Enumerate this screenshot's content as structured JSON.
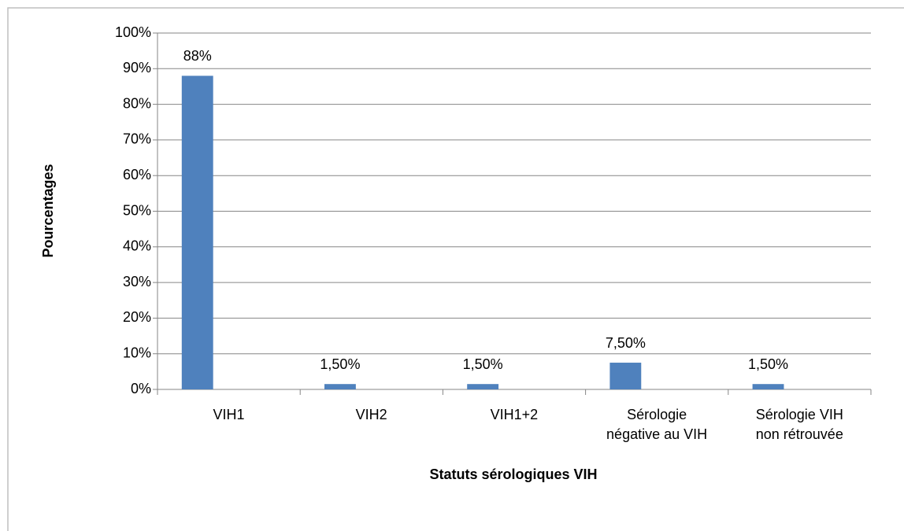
{
  "chart_data": {
    "type": "bar",
    "x_label": "Statuts sérologiques VIH",
    "y_label": "Pourcentages",
    "categories": [
      "VIH1",
      "VIH2",
      "VIH1+2",
      "Sérologie\nnégative au VIH",
      "Sérologie VIH\nnon rétrouvée"
    ],
    "values": [
      88,
      1.5,
      1.5,
      7.5,
      1.5
    ],
    "value_labels": [
      "88%",
      "1,50%",
      "1,50%",
      "7,50%",
      "1,50%"
    ],
    "color": "#4f81bd",
    "ylim": [
      0,
      100
    ],
    "yticks": [
      {
        "value": 0,
        "label": "0%"
      },
      {
        "value": 10,
        "label": "10%"
      },
      {
        "value": 20,
        "label": "20%"
      },
      {
        "value": 30,
        "label": "30%"
      },
      {
        "value": 40,
        "label": "40%"
      },
      {
        "value": 50,
        "label": "50%"
      },
      {
        "value": 60,
        "label": "60%"
      },
      {
        "value": 70,
        "label": "70%"
      },
      {
        "value": 80,
        "label": "80%"
      },
      {
        "value": 90,
        "label": "90%"
      },
      {
        "value": 100,
        "label": "100%"
      }
    ],
    "grid": true
  }
}
